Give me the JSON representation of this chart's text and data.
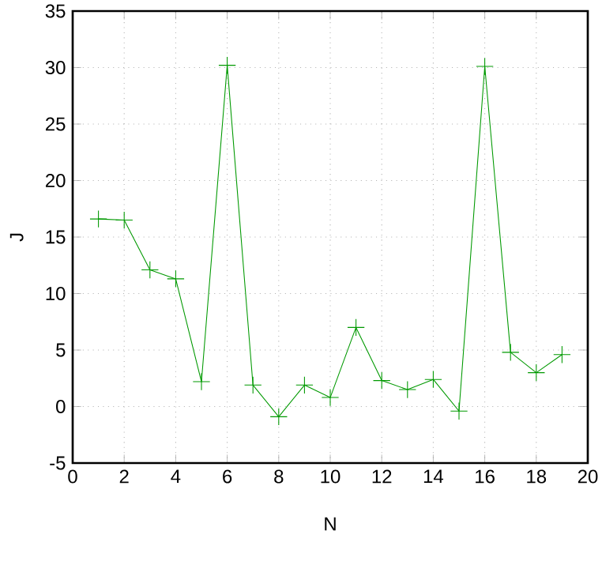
{
  "chart_data": {
    "type": "line",
    "xlabel": "N",
    "ylabel": "J",
    "x": [
      1,
      2,
      3,
      4,
      5,
      6,
      7,
      8,
      9,
      10,
      11,
      12,
      13,
      14,
      15,
      16,
      17,
      18,
      19
    ],
    "series": [
      {
        "color": "#009900",
        "values": [
          16.6,
          16.5,
          12.1,
          11.3,
          2.2,
          30.2,
          1.9,
          -0.9,
          1.9,
          0.8,
          7.0,
          2.3,
          1.5,
          2.4,
          -0.4,
          30.1,
          4.8,
          3.0,
          4.6
        ]
      }
    ],
    "xlim": [
      0,
      20
    ],
    "xticks": [
      0,
      2,
      4,
      6,
      8,
      10,
      12,
      14,
      16,
      18,
      20
    ],
    "ylim": [
      -5,
      35
    ],
    "yticks": [
      -5,
      0,
      5,
      10,
      15,
      20,
      25,
      30,
      35
    ],
    "grid": true,
    "marker": "cross",
    "line_style": "solid"
  }
}
